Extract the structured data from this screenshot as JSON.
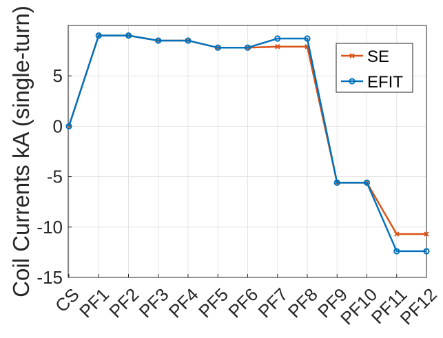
{
  "chart_data": {
    "type": "line",
    "title": "",
    "xlabel": "",
    "ylabel": "Coil Currents kA (single-turn)",
    "categories": [
      "CS",
      "PF1",
      "PF2",
      "PF3",
      "PF4",
      "PF5",
      "PF6",
      "PF7",
      "PF8",
      "PF9",
      "PF10",
      "PF11",
      "PF12"
    ],
    "ylim": [
      -15,
      10
    ],
    "yticks": [
      -15,
      -10,
      -5,
      0,
      5
    ],
    "ytick_labels": [
      "-15",
      "-10",
      "-5",
      "0",
      "5"
    ],
    "grid": true,
    "legend_position": "top-right",
    "series": [
      {
        "name": "SE",
        "color": "#D95319",
        "marker": "x",
        "values": [
          0,
          9.0,
          9.0,
          8.5,
          8.5,
          7.8,
          7.8,
          7.9,
          7.9,
          -5.6,
          -5.6,
          -10.7,
          -10.7
        ]
      },
      {
        "name": "EFIT",
        "color": "#0072BD",
        "marker": "o",
        "values": [
          0,
          9.0,
          9.0,
          8.5,
          8.5,
          7.8,
          7.8,
          8.7,
          8.7,
          -5.6,
          -5.6,
          -12.4,
          -12.4
        ]
      }
    ]
  }
}
